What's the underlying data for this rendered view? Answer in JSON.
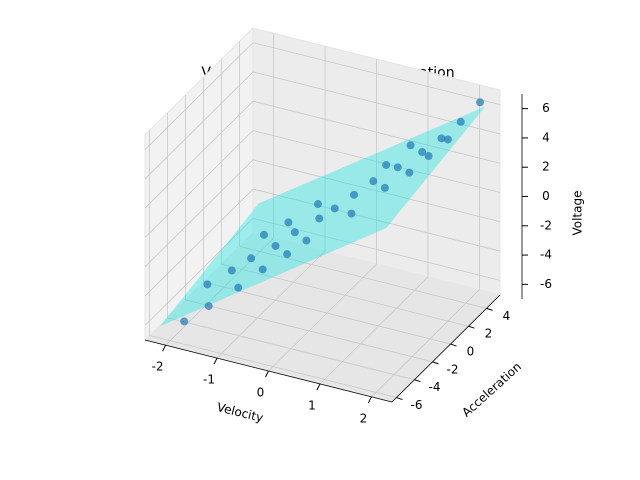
{
  "chart_data": {
    "type": "scatter3d",
    "title": "Voltage vs velocity and acceleration",
    "xlabel": "Velocity",
    "ylabel": "Acceleration",
    "zlabel": "Voltage",
    "xlim": [
      -2.4,
      2.4
    ],
    "ylim": [
      -6.5,
      5.5
    ],
    "zlim": [
      -7,
      7
    ],
    "xticks": [
      -2,
      -1,
      0,
      1,
      2
    ],
    "yticks": [
      -6,
      -4,
      -2,
      0,
      2,
      4
    ],
    "zticks": [
      -6,
      -4,
      -2,
      0,
      2,
      4,
      6
    ],
    "grid": true,
    "series": [
      {
        "color": "#1f77b4",
        "x": [
          -1.8,
          -1.6,
          -1.5,
          -1.3,
          -1.2,
          -1.0,
          -0.9,
          -0.8,
          -0.6,
          -0.5,
          -0.4,
          -1.9,
          -1.4,
          -1.1,
          -0.7,
          0.5,
          0.7,
          0.9,
          1.0,
          1.2,
          1.3,
          1.5,
          1.6,
          1.7,
          1.8,
          1.9,
          2.0,
          1.1,
          0.8,
          2.1
        ],
        "y": [
          -3,
          -4,
          -2,
          -1,
          -3,
          0,
          -2,
          1,
          -1,
          2,
          0,
          -5,
          1,
          2,
          3,
          -2,
          -1,
          0,
          -3,
          1,
          -1,
          2,
          0,
          3,
          1,
          4,
          2,
          3,
          2,
          5
        ],
        "z": [
          -4.8,
          -5.5,
          -4.2,
          -3.8,
          -4.5,
          -3.3,
          -3.6,
          -2.8,
          -2.9,
          -2.2,
          -2.4,
          -6.2,
          -3.5,
          -3.0,
          -2.0,
          1.8,
          2.3,
          2.8,
          2.5,
          3.4,
          3.3,
          4.1,
          4.0,
          4.6,
          4.7,
          5.3,
          5.4,
          3.6,
          2.6,
          6.2
        ]
      }
    ],
    "plane": {
      "color": "#00e5e5",
      "x": [
        -2.2,
        2.2,
        2.2,
        -2.2
      ],
      "y": [
        -6,
        -6,
        5,
        5
      ],
      "z": [
        -6.2,
        4.4,
        6.0,
        -4.5
      ]
    }
  }
}
